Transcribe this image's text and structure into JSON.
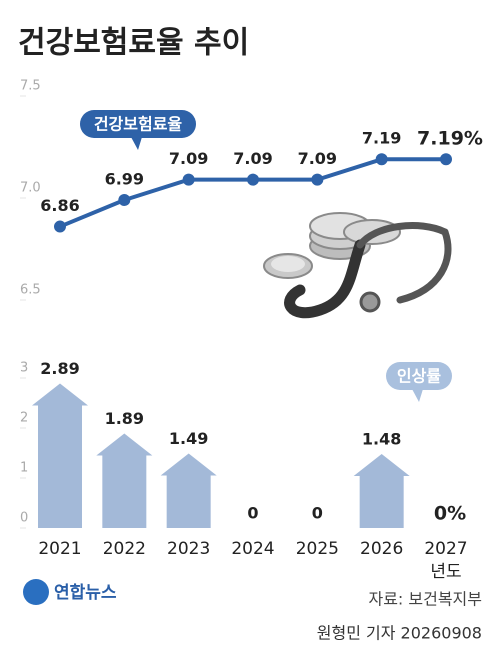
{
  "title": "건강보험료율 추이",
  "logo": "연합뉴스",
  "source": "자료: 보건복지부",
  "credit": "원형민 기자 20260908",
  "chart_data": [
    {
      "type": "line",
      "series": [
        {
          "name": "건강보험료율",
          "color": "#2e62a8",
          "values": [
            6.86,
            6.99,
            7.09,
            7.09,
            7.09,
            7.19,
            7.19
          ],
          "value_labels": [
            "6.86",
            "6.99",
            "7.09",
            "7.09",
            "7.09",
            "7.19",
            "7.19%"
          ]
        }
      ],
      "ylim": [
        6.5,
        7.5
      ],
      "yticks": [
        6.5,
        {
          "value": 7,
          "label": "7.0"
        },
        7.5
      ]
    },
    {
      "type": "bar",
      "categories": [
        "2021",
        "2022",
        "2023",
        "2024",
        "2025",
        "2026",
        "2027"
      ],
      "xlabel": "년도",
      "series": [
        {
          "name": "인상률",
          "color": "#a3b9d8",
          "values": [
            2.89,
            1.89,
            1.49,
            0,
            0,
            1.48,
            0
          ],
          "value_labels": [
            "2.89",
            "1.89",
            "1.49",
            "0",
            "0",
            "1.48",
            "0%"
          ]
        }
      ],
      "ylim": [
        0,
        3
      ],
      "yticks": [
        0,
        1,
        2,
        3
      ]
    }
  ]
}
